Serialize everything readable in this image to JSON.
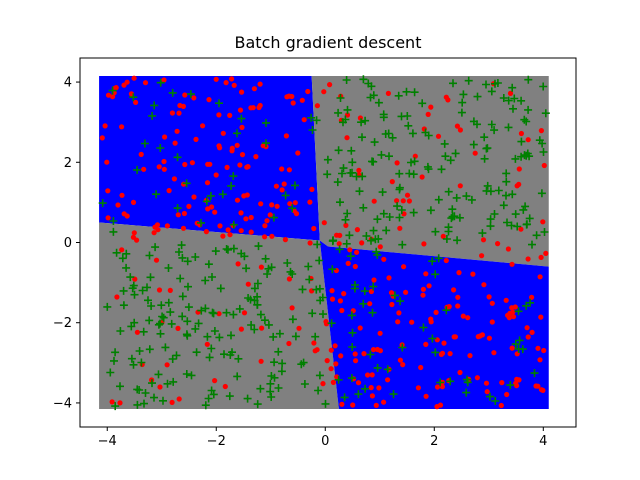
{
  "chart_data": {
    "type": "scatter",
    "title": "Batch gradient descent",
    "xlabel": "",
    "ylabel": "",
    "xlim": [
      -4.5,
      4.6
    ],
    "ylim": [
      -4.6,
      4.6
    ],
    "x_ticks": [
      -4,
      -2,
      0,
      2,
      4
    ],
    "y_ticks": [
      -4,
      -2,
      0,
      2,
      4
    ],
    "x_tick_labels": [
      "−4",
      "−2",
      "0",
      "2",
      "4"
    ],
    "y_tick_labels": [
      "−4",
      "−2",
      "0",
      "2",
      "4"
    ],
    "grid": false,
    "colors": {
      "region_positive": "#0000ff",
      "region_negative": "#808080",
      "red_points": "#ff0000",
      "green_points": "#008000"
    },
    "decision_regions": [
      {
        "color": "region_positive",
        "polygon": [
          [
            -4.15,
            4.15
          ],
          [
            -0.25,
            4.15
          ],
          [
            -0.1,
            0.05
          ],
          [
            -4.15,
            0.5
          ]
        ]
      },
      {
        "color": "region_negative",
        "polygon": [
          [
            -0.25,
            4.15
          ],
          [
            4.1,
            4.15
          ],
          [
            4.1,
            -0.6
          ],
          [
            0.05,
            -0.1
          ],
          [
            -0.1,
            0.05
          ]
        ]
      },
      {
        "color": "region_negative",
        "polygon": [
          [
            -4.15,
            0.5
          ],
          [
            -0.1,
            0.05
          ],
          [
            0.25,
            -4.15
          ],
          [
            -4.15,
            -4.15
          ]
        ]
      },
      {
        "color": "region_positive",
        "polygon": [
          [
            -0.1,
            0.05
          ],
          [
            0.05,
            -0.1
          ],
          [
            4.1,
            -0.6
          ],
          [
            4.1,
            -4.15
          ],
          [
            0.25,
            -4.15
          ]
        ]
      }
    ],
    "series": [
      {
        "marker": "circle",
        "color": "red_points",
        "generator": "quadrant_xor",
        "count": 380,
        "seed": 7,
        "range": [
          -4.1,
          4.1
        ],
        "rule": "x*y >= 0 with label noise"
      },
      {
        "marker": "plus",
        "color": "green_points",
        "generator": "quadrant_xor",
        "count": 420,
        "seed": 13,
        "range": [
          -4.1,
          4.1
        ],
        "rule": "x*y < 0 with label noise"
      }
    ]
  }
}
